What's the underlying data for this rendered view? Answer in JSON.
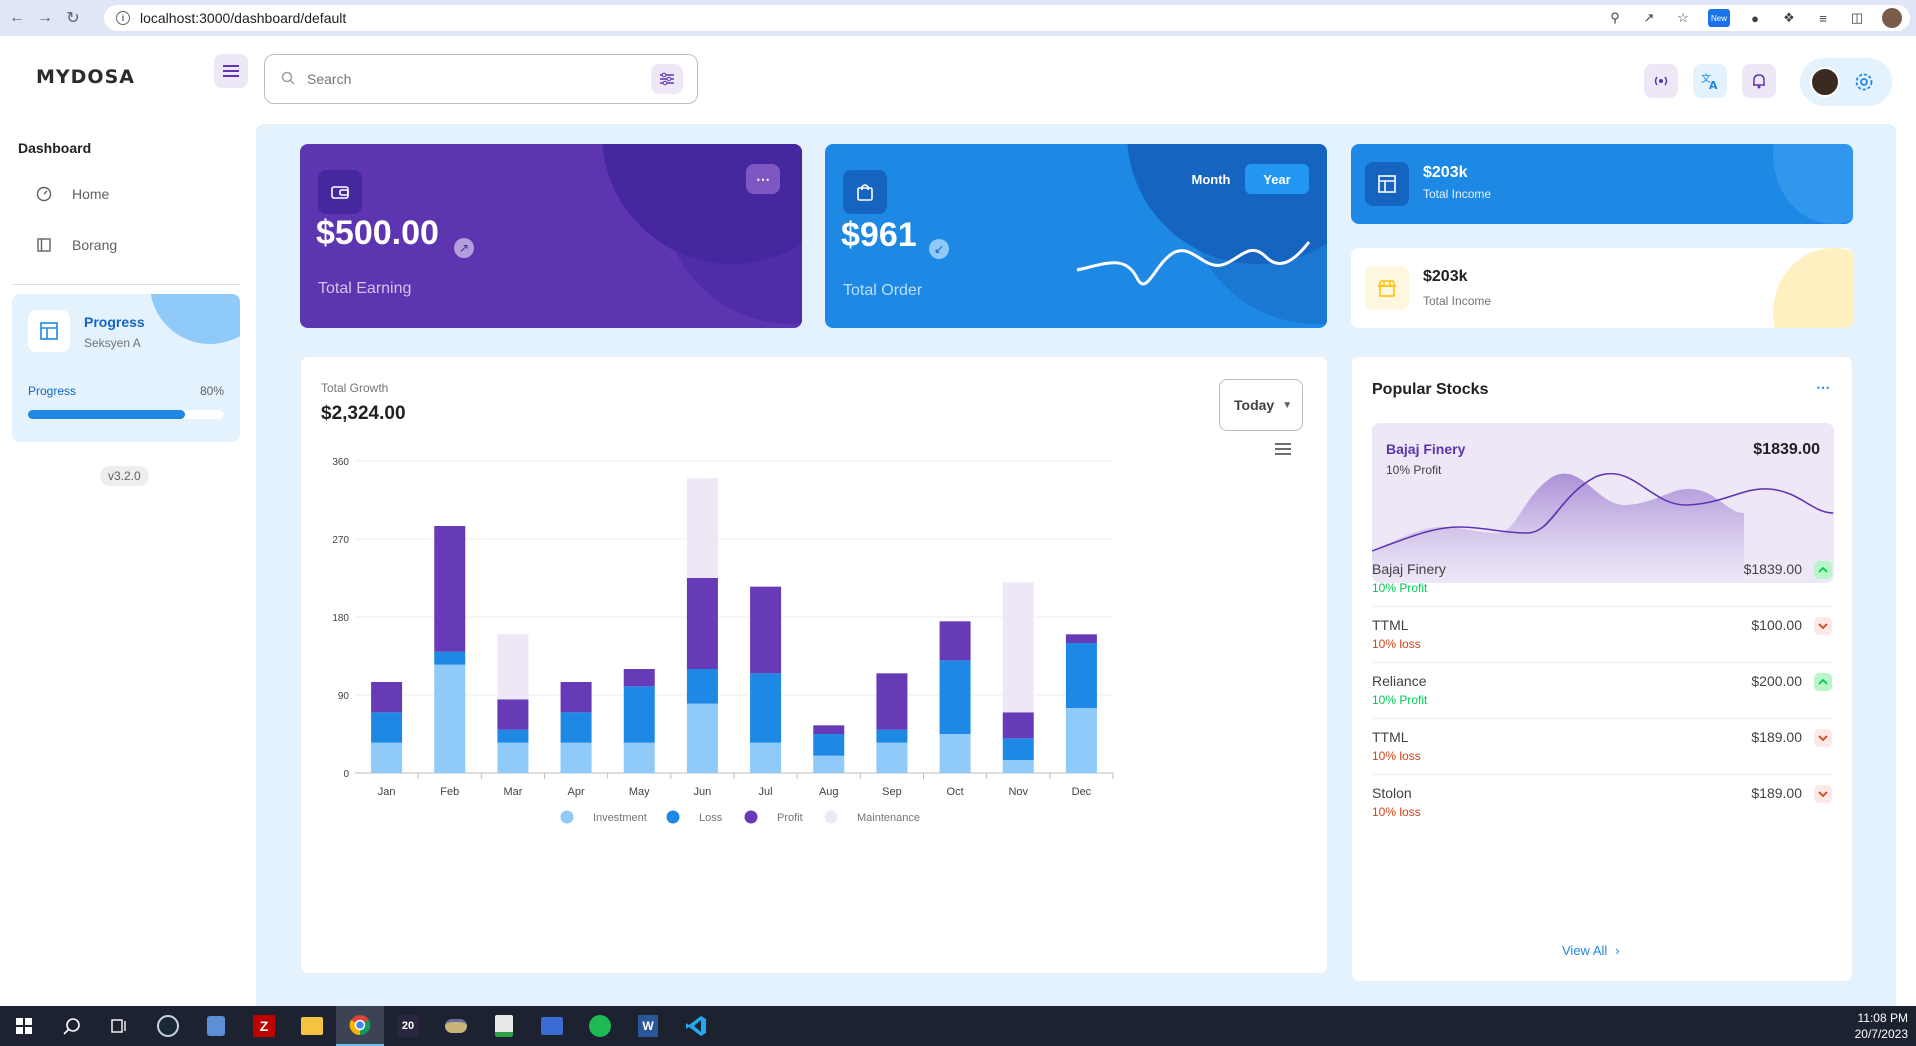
{
  "browser": {
    "url": "localhost:3000/dashboard/default",
    "new_badge": "New"
  },
  "header": {
    "logo": "MYDOSA",
    "search_placeholder": "Search"
  },
  "sidebar": {
    "section_title": "Dashboard",
    "items": [
      {
        "label": "Home",
        "icon": "dashboard-icon"
      },
      {
        "label": "Borang",
        "icon": "form-icon"
      }
    ],
    "progress": {
      "title": "Progress",
      "subtitle": "Seksyen A",
      "label": "Progress",
      "percent_text": "80%",
      "value": 0.8
    },
    "version": "v3.2.0"
  },
  "cards": {
    "earning": {
      "amount": "$500.00",
      "label": "Total Earning"
    },
    "order": {
      "amount": "$961",
      "label": "Total Order",
      "toggle_month": "Month",
      "toggle_year": "Year"
    },
    "income_primary": {
      "value": "$203k",
      "label": "Total Income"
    },
    "income_secondary": {
      "value": "$203k",
      "label": "Total Income"
    }
  },
  "growth": {
    "label": "Total Growth",
    "value": "$2,324.00",
    "period": "Today"
  },
  "chart_data": {
    "type": "bar",
    "stacked": true,
    "categories": [
      "Jan",
      "Feb",
      "Mar",
      "Apr",
      "May",
      "Jun",
      "Jul",
      "Aug",
      "Sep",
      "Oct",
      "Nov",
      "Dec"
    ],
    "series": [
      {
        "name": "Investment",
        "color": "#90caf9",
        "values": [
          35,
          125,
          35,
          35,
          35,
          80,
          35,
          20,
          35,
          45,
          15,
          75
        ]
      },
      {
        "name": "Loss",
        "color": "#1e88e5",
        "values": [
          35,
          15,
          15,
          35,
          65,
          40,
          80,
          25,
          15,
          85,
          25,
          75
        ]
      },
      {
        "name": "Profit",
        "color": "#673ab7",
        "values": [
          35,
          145,
          35,
          35,
          20,
          105,
          100,
          10,
          65,
          45,
          30,
          10
        ]
      },
      {
        "name": "Maintenance",
        "color": "#ede7f6",
        "values": [
          0,
          0,
          75,
          0,
          0,
          115,
          0,
          0,
          0,
          0,
          150,
          0
        ]
      }
    ],
    "yticks": [
      0,
      90,
      180,
      270,
      360
    ],
    "ylim": [
      0,
      360
    ],
    "grid": true,
    "legend": "bottom-center"
  },
  "stocks": {
    "title": "Popular Stocks",
    "featured": {
      "name": "Bajaj Finery",
      "note": "10% Profit",
      "value": "$1839.00"
    },
    "rows": [
      {
        "name": "Bajaj Finery",
        "value": "$1839.00",
        "note": "10% Profit",
        "trend": "up"
      },
      {
        "name": "TTML",
        "value": "$100.00",
        "note": "10% loss",
        "trend": "down"
      },
      {
        "name": "Reliance",
        "value": "$200.00",
        "note": "10% Profit",
        "trend": "up"
      },
      {
        "name": "TTML",
        "value": "$189.00",
        "note": "10% loss",
        "trend": "down"
      },
      {
        "name": "Stolon",
        "value": "$189.00",
        "note": "10% loss",
        "trend": "down"
      }
    ],
    "view_all": "View All"
  },
  "taskbar": {
    "badge_number": "20",
    "time": "11:08 PM",
    "date": "20/7/2023"
  },
  "colors": {
    "purple": "#5e35b1",
    "blue": "#1e88e5",
    "profit_green": "#00c853",
    "loss_red": "#d84315"
  }
}
